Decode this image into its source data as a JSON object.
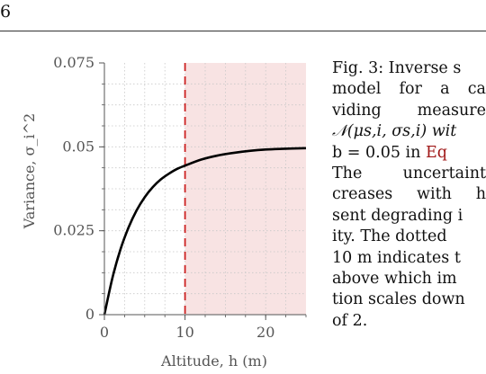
{
  "page_number": "6",
  "chart_data": {
    "type": "line",
    "xlabel": "Altitude, h (m)",
    "ylabel": "Variance, σ_i^2",
    "xlim": [
      0,
      25
    ],
    "ylim": [
      0,
      0.075
    ],
    "x_ticks": [
      "0",
      "10",
      "20"
    ],
    "y_ticks": [
      "0",
      "0.025",
      "0.05",
      "0.075"
    ],
    "grid": true,
    "series": [
      {
        "color": "#000000",
        "x": [
          0,
          1,
          2,
          3,
          4,
          5,
          6,
          7,
          8,
          9,
          10,
          12,
          14,
          16,
          18,
          20,
          22,
          25
        ],
        "y": [
          0,
          0.011,
          0.0195,
          0.026,
          0.0311,
          0.035,
          0.038,
          0.0403,
          0.042,
          0.0434,
          0.0444,
          0.0462,
          0.0474,
          0.0482,
          0.0488,
          0.0492,
          0.0494,
          0.0496
        ]
      }
    ],
    "threshold_line": {
      "x": 10,
      "color": "#cc2222",
      "style": "dashed"
    },
    "shaded_region": {
      "x_from": 10,
      "x_to": 25,
      "color": "#f8e3e3"
    }
  },
  "caption": {
    "lines": [
      "Fig. 3: Inverse s",
      "model  for  a  ca",
      "viding   measure",
      "𝒩(μs,i, σs,i)  wit",
      "b = 0.05 in Eq",
      "The   uncertaint",
      "creases   with   h",
      "sent degrading i",
      "ity. The dotted",
      "10 m indicates t",
      "above which im",
      "tion scales down",
      "of 2."
    ],
    "ref_text": "Eq"
  }
}
